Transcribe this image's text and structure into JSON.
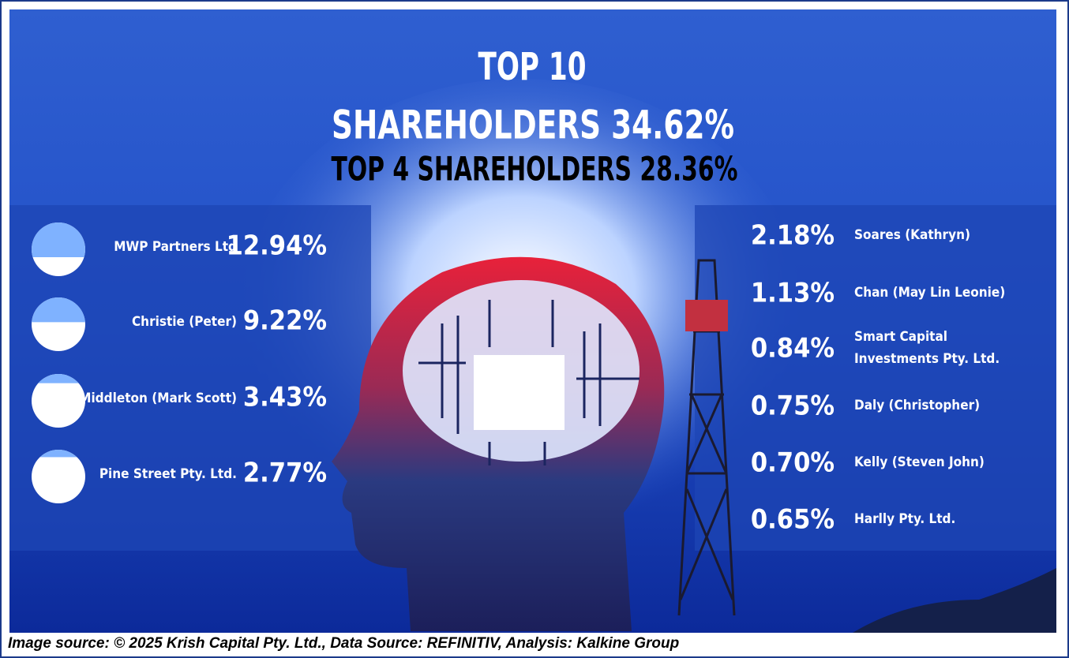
{
  "header": {
    "line1": "TOP 10",
    "line2": "SHAREHOLDERS 34.62%",
    "line3": "TOP 4 SHAREHOLDERS 28.36%"
  },
  "top4": [
    {
      "name": "MWP Partners Ltd",
      "value": 12.94,
      "value_label": "12.94%"
    },
    {
      "name": "Christie (Peter)",
      "value": 9.22,
      "value_label": "9.22%"
    },
    {
      "name": "Middleton (Mark Scott)",
      "value": 3.43,
      "value_label": "3.43%"
    },
    {
      "name": "Pine Street Pty. Ltd.",
      "value": 2.77,
      "value_label": "2.77%"
    }
  ],
  "others": [
    {
      "name": [
        "Soares (Kathryn)"
      ],
      "value_label": "2.18%"
    },
    {
      "name": [
        "Chan (May Lin Leonie)"
      ],
      "value_label": "1.13%"
    },
    {
      "name": [
        "Smart Capital",
        "Investments Pty. Ltd."
      ],
      "value_label": "0.84%"
    },
    {
      "name": [
        "Daly (Christopher)"
      ],
      "value_label": "0.75%"
    },
    {
      "name": [
        "Kelly (Steven John)"
      ],
      "value_label": "0.70%"
    },
    {
      "name": [
        "Harlly Pty. Ltd."
      ],
      "value_label": "0.65%"
    }
  ],
  "footer": "Image source: © 2025 Krish Capital Pty. Ltd., Data Source: REFINITIV, Analysis: Kalkine Group"
}
